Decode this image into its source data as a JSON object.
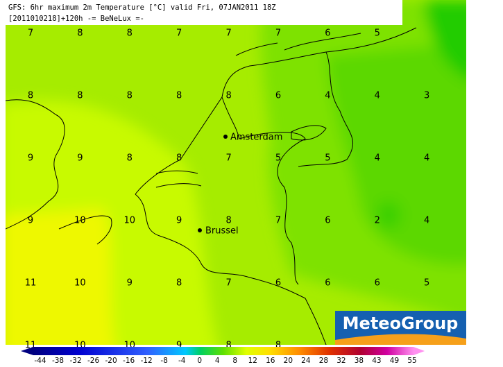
{
  "header": {
    "line1": "GFS: 6hr maximum 2m Temperature [°C] valid Fri, 07JAN2011 18Z",
    "line2": "[2011010218]+120h -= BeNeLux =-"
  },
  "grid_values": [
    [
      "7",
      "8",
      "8",
      "7",
      "7",
      "7",
      "6",
      "5"
    ],
    [
      "8",
      "8",
      "8",
      "8",
      "8",
      "6",
      "4",
      "4",
      "3"
    ],
    [
      "9",
      "9",
      "8",
      "8",
      "7",
      "5",
      "5",
      "4",
      "4"
    ],
    [
      "9",
      "10",
      "10",
      "9",
      "8",
      "7",
      "6",
      "2",
      "4"
    ],
    [
      "11",
      "10",
      "9",
      "8",
      "7",
      "6",
      "6",
      "6",
      "5"
    ],
    [
      "11",
      "10",
      "10",
      "9",
      "8",
      "8"
    ]
  ],
  "cities": [
    {
      "name": "Amsterdam"
    },
    {
      "name": "Brussel"
    }
  ],
  "logo": "MeteoGroup",
  "colorbar_labels": [
    "-44",
    "-38",
    "-32",
    "-26",
    "-20",
    "-16",
    "-12",
    "-8",
    "-4",
    "0",
    "4",
    "8",
    "12",
    "16",
    "20",
    "24",
    "28",
    "32",
    "38",
    "43",
    "49",
    "55"
  ]
}
